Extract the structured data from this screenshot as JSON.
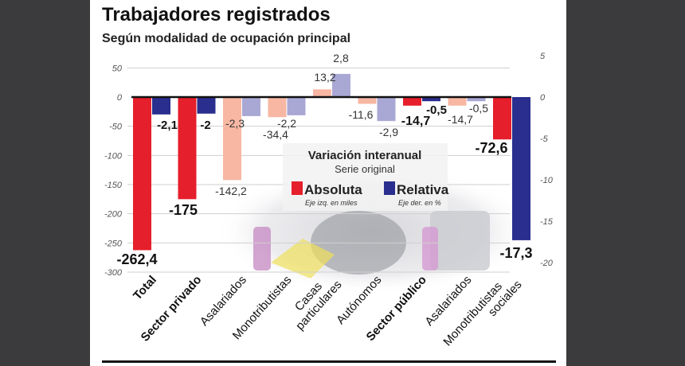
{
  "chart_data": {
    "type": "bar",
    "title": "Trabajadores registrados",
    "subtitle": "Según modalidad de ocupación principal",
    "categories": [
      "Total",
      "Sector privado",
      "Asalariados",
      "Monotributistas",
      "Casas particulares",
      "Autónomos",
      "Sector público",
      "Asalariados",
      "Monotributistas sociales"
    ],
    "bold_categories": [
      0,
      1,
      6
    ],
    "highlighted_categories": [
      0,
      1,
      6,
      8
    ],
    "series": [
      {
        "name": "Absoluta",
        "axis": "left",
        "values": [
          -262.4,
          -175,
          -142.2,
          -34.4,
          13.2,
          -11.6,
          -14.7,
          -14.7,
          -72.6
        ],
        "labels": [
          "-262,4",
          "-175",
          "-142,2",
          "-34,4",
          "13,2",
          "-11,6",
          "-14,7",
          "-14,7",
          "-72,6"
        ],
        "color": "#e51f2b",
        "muted_color": "#f7b7a3"
      },
      {
        "name": "Relativa",
        "axis": "right",
        "values": [
          -2.1,
          -2,
          -2.3,
          -2.2,
          2.8,
          -2.9,
          -0.5,
          -0.5,
          -17.3
        ],
        "labels": [
          "-2,1",
          "-2",
          "-2,3",
          "-2,2",
          "2,8",
          "-2,9",
          "-0,5",
          "-0,5",
          "-17,3"
        ],
        "color": "#2a2e8e",
        "muted_color": "#a9a8d4"
      }
    ],
    "left_axis": {
      "ylim": [
        -300,
        50
      ],
      "ticks": [
        50,
        0,
        -50,
        -100,
        -150,
        -200,
        -250,
        -300
      ],
      "unit": "miles"
    },
    "right_axis": {
      "ylim": [
        -20,
        5
      ],
      "ticks": [
        5,
        0,
        -5,
        -10,
        -15,
        -20
      ],
      "unit": "%"
    },
    "grid": true,
    "legend": {
      "title": "Variación interanual",
      "subtitle": "Serie original",
      "placement": "center",
      "items": [
        {
          "label": "Absoluta",
          "note": "Eje izq. en miles"
        },
        {
          "label": "Relativa",
          "note": "Eje der. en %"
        }
      ]
    }
  }
}
